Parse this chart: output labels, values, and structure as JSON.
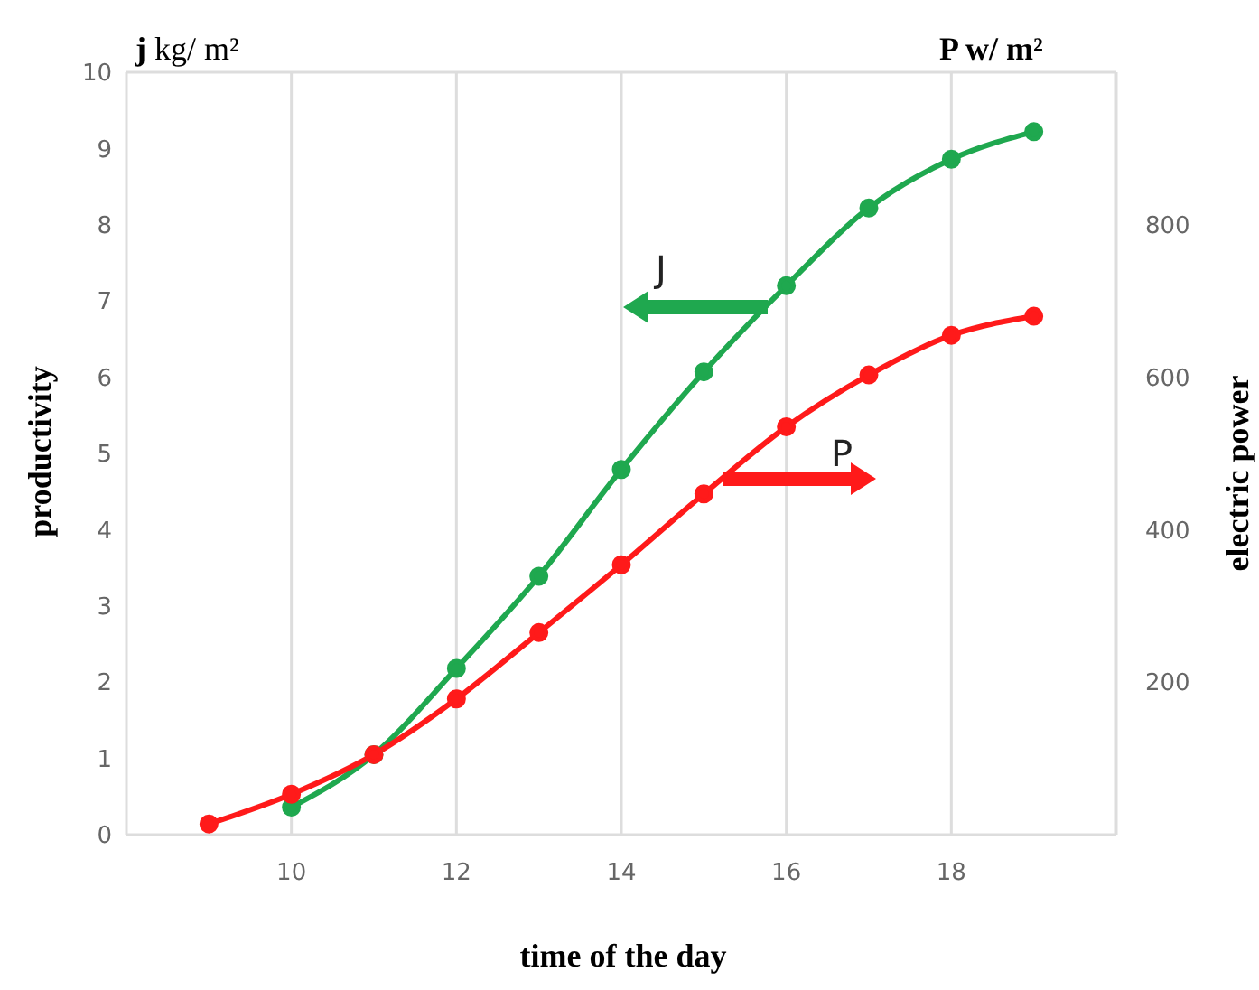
{
  "chart_data": {
    "type": "line",
    "xlabel": "time of the day",
    "ylabel": "productivity",
    "y2label": "electric power",
    "annotations": [
      "j kg/ m²",
      "P w/ m²"
    ],
    "series": [
      {
        "name": "J",
        "color": "#1fa84f",
        "axis": "y",
        "x": [
          10,
          11,
          12,
          13,
          14,
          15,
          16,
          17,
          18,
          19
        ],
        "values": [
          0.36,
          1.05,
          2.18,
          3.39,
          4.79,
          6.07,
          7.2,
          8.22,
          8.86,
          9.22
        ]
      },
      {
        "name": "P",
        "color": "#ff1a1a",
        "axis": "y2",
        "x": [
          9,
          10,
          11,
          12,
          13,
          14,
          15,
          16,
          17,
          18,
          19
        ],
        "values": [
          14,
          53,
          105,
          178,
          265,
          354,
          447,
          535,
          603,
          655,
          680
        ]
      }
    ],
    "xlim": [
      8,
      20
    ],
    "xticks": [
      10,
      12,
      14,
      16,
      18
    ],
    "ylim": [
      0,
      10
    ],
    "yticks": [
      0,
      1,
      2,
      3,
      4,
      5,
      6,
      7,
      8,
      9,
      10
    ],
    "y2lim": [
      0,
      1000
    ],
    "y2ticks": [
      200,
      400,
      600,
      800
    ],
    "grid": true,
    "legend": false,
    "marker": "circle",
    "line_style": "solid"
  }
}
